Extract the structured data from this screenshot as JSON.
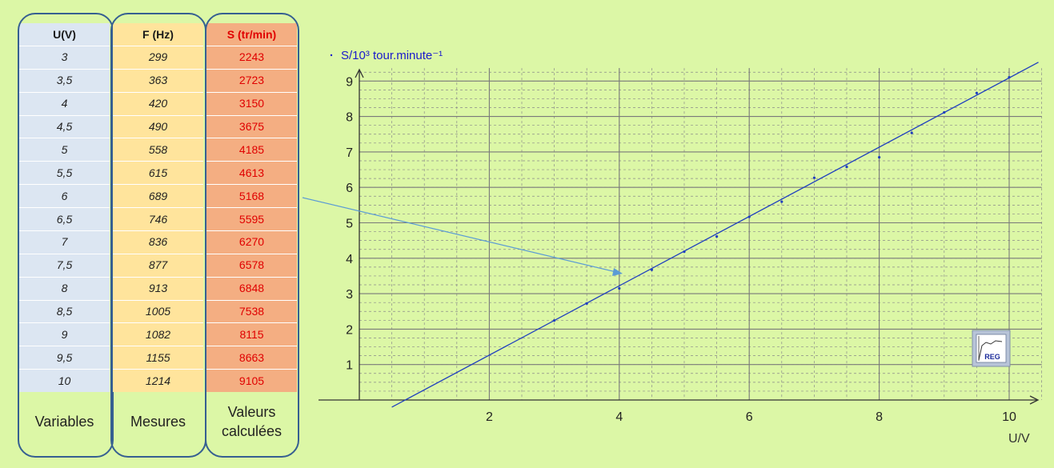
{
  "table": {
    "columns": [
      {
        "header": "U(V)",
        "caption": "Variables",
        "bg": "#dce6f2",
        "header_color": "#1a1a1a",
        "values": [
          "3",
          "3,5",
          "4",
          "4,5",
          "5",
          "5,5",
          "6",
          "6,5",
          "7",
          "7,5",
          "8",
          "8,5",
          "9",
          "9,5",
          "10"
        ]
      },
      {
        "header": "F (Hz)",
        "caption": "Mesures",
        "bg": "#ffe49c",
        "header_color": "#1a1a1a",
        "values": [
          "299",
          "363",
          "420",
          "490",
          "558",
          "615",
          "689",
          "746",
          "836",
          "877",
          "913",
          "1005",
          "1082",
          "1155",
          "1214"
        ]
      },
      {
        "header": "S (tr/min)",
        "caption": "Valeurs calculées",
        "bg": "#f4ae82",
        "header_color": "#e00000",
        "values": [
          "2243",
          "2723",
          "3150",
          "3675",
          "4185",
          "4613",
          "5168",
          "5595",
          "6270",
          "6578",
          "6848",
          "7538",
          "8115",
          "8663",
          "9105"
        ]
      }
    ]
  },
  "chart_data": {
    "type": "scatter",
    "ylabel": "S/10³ tour.minute⁻¹",
    "xlabel": "U/V",
    "xlim": [
      0,
      10.5
    ],
    "ylim": [
      0,
      9.5
    ],
    "x_ticks": [
      2,
      4,
      6,
      8,
      10
    ],
    "y_ticks": [
      1,
      2,
      3,
      4,
      5,
      6,
      7,
      8,
      9
    ],
    "grid": true,
    "series": [
      {
        "x": [
          3,
          3.5,
          4,
          4.5,
          5,
          5.5,
          6,
          6.5,
          7,
          7.5,
          8,
          8.5,
          9,
          9.5,
          10
        ],
        "y": [
          2.243,
          2.723,
          3.15,
          3.675,
          4.185,
          4.613,
          5.168,
          5.595,
          6.27,
          6.578,
          6.848,
          7.538,
          8.115,
          8.663,
          9.105
        ],
        "color": "#1f3fbf"
      }
    ],
    "fit_line": {
      "slope": 0.978,
      "intercept": -0.69,
      "x_range": [
        0.5,
        10.45
      ],
      "color": "#1f3fbf"
    },
    "logo_label": "REG"
  }
}
